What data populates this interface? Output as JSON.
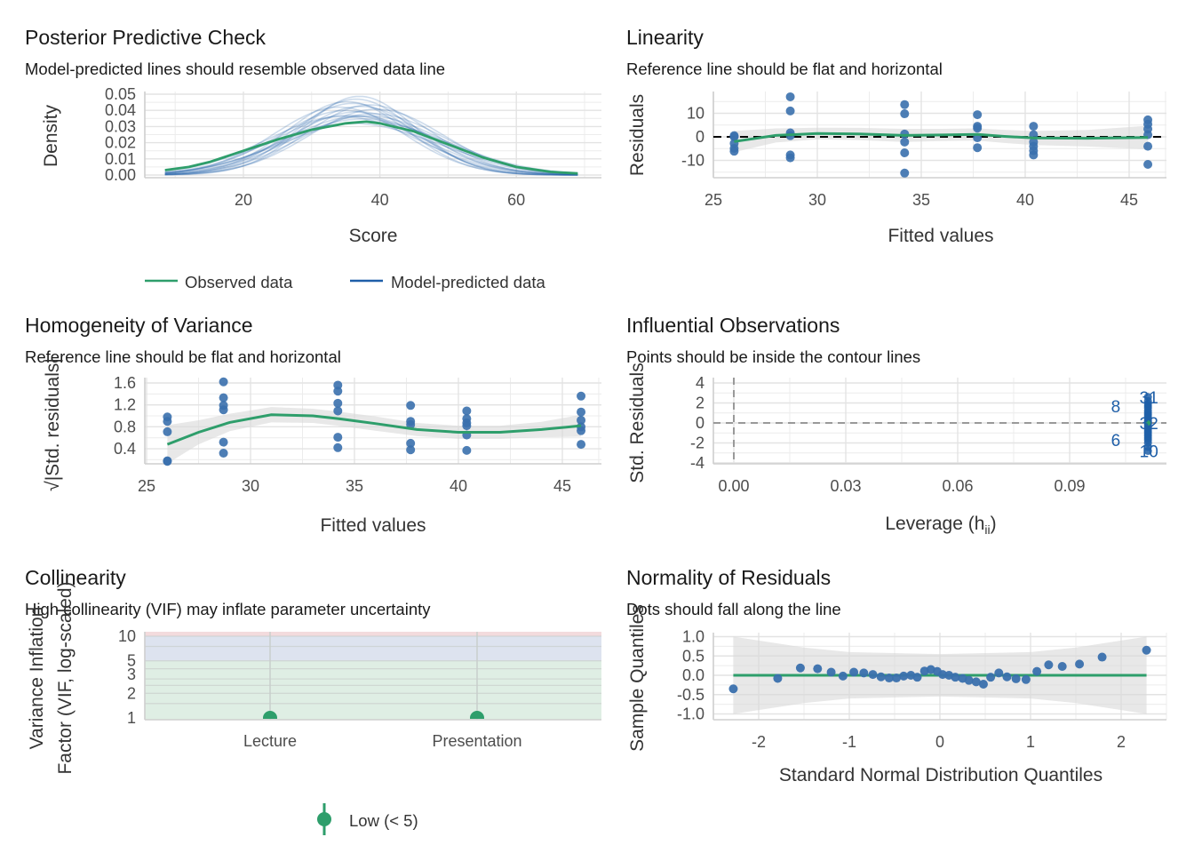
{
  "colors": {
    "green": "#2e9e6b",
    "blue_points": "#3a70ad",
    "blue_lines": "#1f5fa8",
    "ribbon": "#d9d9d9"
  },
  "chart_data": [
    {
      "type": "line",
      "title": "Posterior Predictive Check",
      "subtitle": "Model-predicted lines should resemble observed data line",
      "xlabel": "Score",
      "ylabel": "Density",
      "xticks": [
        20,
        40,
        60
      ],
      "xtick_labels": [
        "20",
        "40",
        "60"
      ],
      "yticks": [
        0,
        0.01,
        0.02,
        0.03,
        0.04,
        0.05
      ],
      "ytick_labels": [
        "0.00",
        "0.01",
        "0.02",
        "0.03",
        "0.04",
        "0.05"
      ],
      "xlim": [
        5,
        72
      ],
      "ylim": [
        0,
        0.05
      ],
      "legend": {
        "placement": "bottom",
        "items": [
          "Observed data",
          "Model-predicted data"
        ]
      },
      "observed": {
        "x": [
          8.5,
          12,
          15,
          20,
          25,
          30,
          35,
          38,
          40,
          45,
          50,
          55,
          60,
          65,
          69
        ],
        "y": [
          0.003,
          0.005,
          0.008,
          0.015,
          0.022,
          0.028,
          0.032,
          0.033,
          0.032,
          0.027,
          0.019,
          0.011,
          0.005,
          0.002,
          0.001
        ]
      },
      "model_predicted": [
        {
          "mean": 35,
          "sd": 10
        },
        {
          "mean": 37,
          "sd": 11
        },
        {
          "mean": 36,
          "sd": 9
        },
        {
          "mean": 38,
          "sd": 12
        },
        {
          "mean": 34,
          "sd": 9.5
        },
        {
          "mean": 39,
          "sd": 10.5
        },
        {
          "mean": 36.5,
          "sd": 8.5
        },
        {
          "mean": 37.5,
          "sd": 11.5
        },
        {
          "mean": 35.5,
          "sd": 10.8
        },
        {
          "mean": 38.5,
          "sd": 9.2
        },
        {
          "mean": 36,
          "sd": 12.5
        },
        {
          "mean": 37,
          "sd": 8.2
        },
        {
          "mean": 34.5,
          "sd": 11
        },
        {
          "mean": 39.5,
          "sd": 9.8
        },
        {
          "mean": 36.8,
          "sd": 10.2
        },
        {
          "mean": 35.2,
          "sd": 8.8
        },
        {
          "mean": 38.2,
          "sd": 10.9
        },
        {
          "mean": 37.2,
          "sd": 9.4
        }
      ],
      "xrange": [
        8.5,
        69
      ]
    },
    {
      "type": "scatter",
      "title": "Linearity",
      "subtitle": "Reference line should be flat and horizontal",
      "xlabel": "Fitted values",
      "ylabel": "Residuals",
      "xticks": [
        25,
        30,
        35,
        40,
        45
      ],
      "xtick_labels": [
        "25",
        "30",
        "35",
        "40",
        "45"
      ],
      "yticks": [
        -10,
        0,
        10
      ],
      "ytick_labels": [
        "-10",
        "0",
        "10"
      ],
      "points": [
        {
          "x": 26,
          "y": [
            0.5,
            0,
            -2.8,
            -4.9,
            -6.1
          ]
        },
        {
          "x": 28.7,
          "y": [
            17,
            11,
            1.7,
            0.5,
            -7.7,
            -8.9
          ]
        },
        {
          "x": 34.2,
          "y": [
            13.7,
            9.8,
            1.2,
            -2.2,
            -6.8,
            -15.4
          ]
        },
        {
          "x": 37.7,
          "y": [
            9.4,
            4.5,
            3.7,
            -0.4,
            -4.6
          ]
        },
        {
          "x": 40.4,
          "y": [
            4.5,
            0.9,
            -2.2,
            -4,
            -5.9,
            -7.7
          ]
        },
        {
          "x": 45.9,
          "y": [
            7.2,
            5.4,
            3.3,
            0.9,
            -4,
            -11.7
          ]
        }
      ],
      "smooth": {
        "x": [
          26,
          28,
          30,
          32,
          34.2,
          36,
          37.7,
          39,
          40.4,
          43,
          45.9
        ],
        "y": [
          -2,
          0.6,
          1.4,
          1.2,
          0.6,
          0.8,
          1,
          0.2,
          -0.5,
          -0.6,
          -0.3
        ]
      },
      "ribbon_halfwidth": [
        4.5,
        3,
        2.5,
        2.6,
        2.8,
        2.6,
        2.6,
        2.8,
        3,
        3.5,
        5
      ],
      "reference_line": 0
    },
    {
      "type": "scatter",
      "title": "Homogeneity of Variance",
      "subtitle": "Reference line should be flat and horizontal",
      "xlabel": "Fitted values",
      "ylabel": "√|Std. residuals|",
      "xticks": [
        25,
        30,
        35,
        40,
        45
      ],
      "xtick_labels": [
        "25",
        "30",
        "35",
        "40",
        "45"
      ],
      "yticks": [
        0.4,
        0.8,
        1.2,
        1.6
      ],
      "ytick_labels": [
        "0.4",
        "0.8",
        "1.2",
        "1.6"
      ],
      "points": [
        {
          "x": 26,
          "y": [
            0.98,
            0.9,
            0.71,
            0.18,
            0.17
          ]
        },
        {
          "x": 28.7,
          "y": [
            1.62,
            1.33,
            1.19,
            1.11,
            0.52,
            0.32
          ]
        },
        {
          "x": 34.2,
          "y": [
            1.56,
            1.45,
            1.23,
            1.09,
            0.61,
            0.42
          ]
        },
        {
          "x": 37.7,
          "y": [
            1.19,
            0.9,
            0.84,
            0.5,
            0.38
          ]
        },
        {
          "x": 40.4,
          "y": [
            1.09,
            0.95,
            0.87,
            0.82,
            0.65,
            0.37
          ]
        },
        {
          "x": 45.9,
          "y": [
            1.36,
            1.07,
            0.92,
            0.8,
            0.73,
            0.48
          ]
        }
      ],
      "smooth": {
        "x": [
          26,
          27.5,
          29,
          31,
          33,
          34.2,
          36,
          38,
          40,
          42,
          44,
          45.9
        ],
        "y": [
          0.48,
          0.7,
          0.88,
          1.02,
          1.0,
          0.95,
          0.86,
          0.75,
          0.7,
          0.7,
          0.75,
          0.82
        ]
      },
      "ribbon_halfwidth": [
        0.35,
        0.22,
        0.16,
        0.14,
        0.13,
        0.13,
        0.13,
        0.12,
        0.12,
        0.12,
        0.14,
        0.2
      ]
    },
    {
      "type": "scatter",
      "title": "Influential Observations",
      "subtitle": "Points should be inside the contour lines",
      "xlabel": "Leverage (h",
      "xlabel_sub": "ii",
      "xlabel_end": ")",
      "ylabel": "Std. Residuals",
      "xticks": [
        0,
        0.03,
        0.06,
        0.09
      ],
      "xtick_labels": [
        "0.00",
        "0.03",
        "0.06",
        "0.09"
      ],
      "yticks": [
        -4,
        -2,
        0,
        2,
        4
      ],
      "ytick_labels": [
        "-4",
        "-2",
        "0",
        "2",
        "4"
      ],
      "leverage": 0.111,
      "std_residuals": [
        2.6,
        2.2,
        1.9,
        1.7,
        1.5,
        1.2,
        1.0,
        0.8,
        0.6,
        0.4,
        0.2,
        0.1,
        0,
        -0.1,
        -0.3,
        -0.5,
        -0.7,
        -0.9,
        -1.1,
        -1.3,
        -1.5,
        -1.7,
        -2.0,
        -2.4,
        -2.8
      ],
      "labels": [
        {
          "text": "31",
          "res": 2.6,
          "side": "right"
        },
        {
          "text": "8",
          "res": 1.7,
          "side": "left"
        },
        {
          "text": "32",
          "res": 0,
          "side": "right"
        },
        {
          "text": "6",
          "res": -1.7,
          "side": "left"
        },
        {
          "text": "10",
          "res": -2.8,
          "side": "right"
        }
      ]
    },
    {
      "type": "scatter",
      "title": "Collinearity",
      "subtitle": "High collinearity (VIF) may inflate parameter uncertainty",
      "xlabel": "",
      "ylabel": [
        "Variance Inflation",
        "Factor (VIF, log-scaled)"
      ],
      "categories": [
        "Lecture",
        "Presentation"
      ],
      "values": [
        1.0,
        1.0
      ],
      "yticks": [
        1,
        2,
        3,
        5,
        10
      ],
      "ytick_labels": [
        "1",
        "2",
        "3",
        "5",
        "10"
      ],
      "bands": [
        {
          "from": 1,
          "to": 5,
          "color": "#dfeee4"
        },
        {
          "from": 5,
          "to": 10,
          "color": "#dde3ef"
        },
        {
          "from": 10,
          "to": 11.5,
          "color": "#f3dbdd"
        }
      ],
      "legend": {
        "placement": "bottom",
        "items": [
          "Low (< 5)"
        ]
      }
    },
    {
      "type": "scatter",
      "title": "Normality of Residuals",
      "subtitle": "Dots should fall along the line",
      "xlabel": "Standard Normal Distribution Quantiles",
      "ylabel": "Sample Quantiles",
      "xticks": [
        -2,
        -1,
        0,
        1,
        2
      ],
      "xtick_labels": [
        "-2",
        "-1",
        "0",
        "1",
        "2"
      ],
      "yticks": [
        -1,
        -0.5,
        0,
        0.5,
        1
      ],
      "ytick_labels": [
        "-1.0",
        "-0.5",
        "0.0",
        "0.5",
        "1.0"
      ],
      "x": [
        -2.28,
        -1.79,
        -1.54,
        -1.35,
        -1.2,
        -1.07,
        -0.95,
        -0.84,
        -0.74,
        -0.65,
        -0.56,
        -0.48,
        -0.4,
        -0.32,
        -0.25,
        -0.17,
        -0.1,
        -0.03,
        0.03,
        0.1,
        0.17,
        0.25,
        0.32,
        0.4,
        0.48,
        0.56,
        0.65,
        0.74,
        0.84,
        0.95,
        1.07,
        1.2,
        1.35,
        1.54,
        1.79,
        2.28
      ],
      "y": [
        -0.35,
        -0.08,
        0.19,
        0.17,
        0.08,
        -0.02,
        0.08,
        0.06,
        0.02,
        -0.04,
        -0.07,
        -0.07,
        -0.02,
        0,
        -0.05,
        0.11,
        0.15,
        0.1,
        0.02,
        0,
        -0.05,
        -0.08,
        -0.13,
        -0.17,
        -0.23,
        -0.05,
        0.06,
        -0.04,
        -0.09,
        -0.11,
        0.1,
        0.27,
        0.23,
        0.29,
        0.47,
        0.65
      ],
      "band": {
        "x": [
          -2.28,
          -1.5,
          -1,
          0,
          1,
          1.5,
          2.28
        ],
        "halfwidth": [
          1.0,
          0.72,
          0.6,
          0.55,
          0.6,
          0.72,
          1.0
        ]
      },
      "reference_line": 0
    }
  ]
}
